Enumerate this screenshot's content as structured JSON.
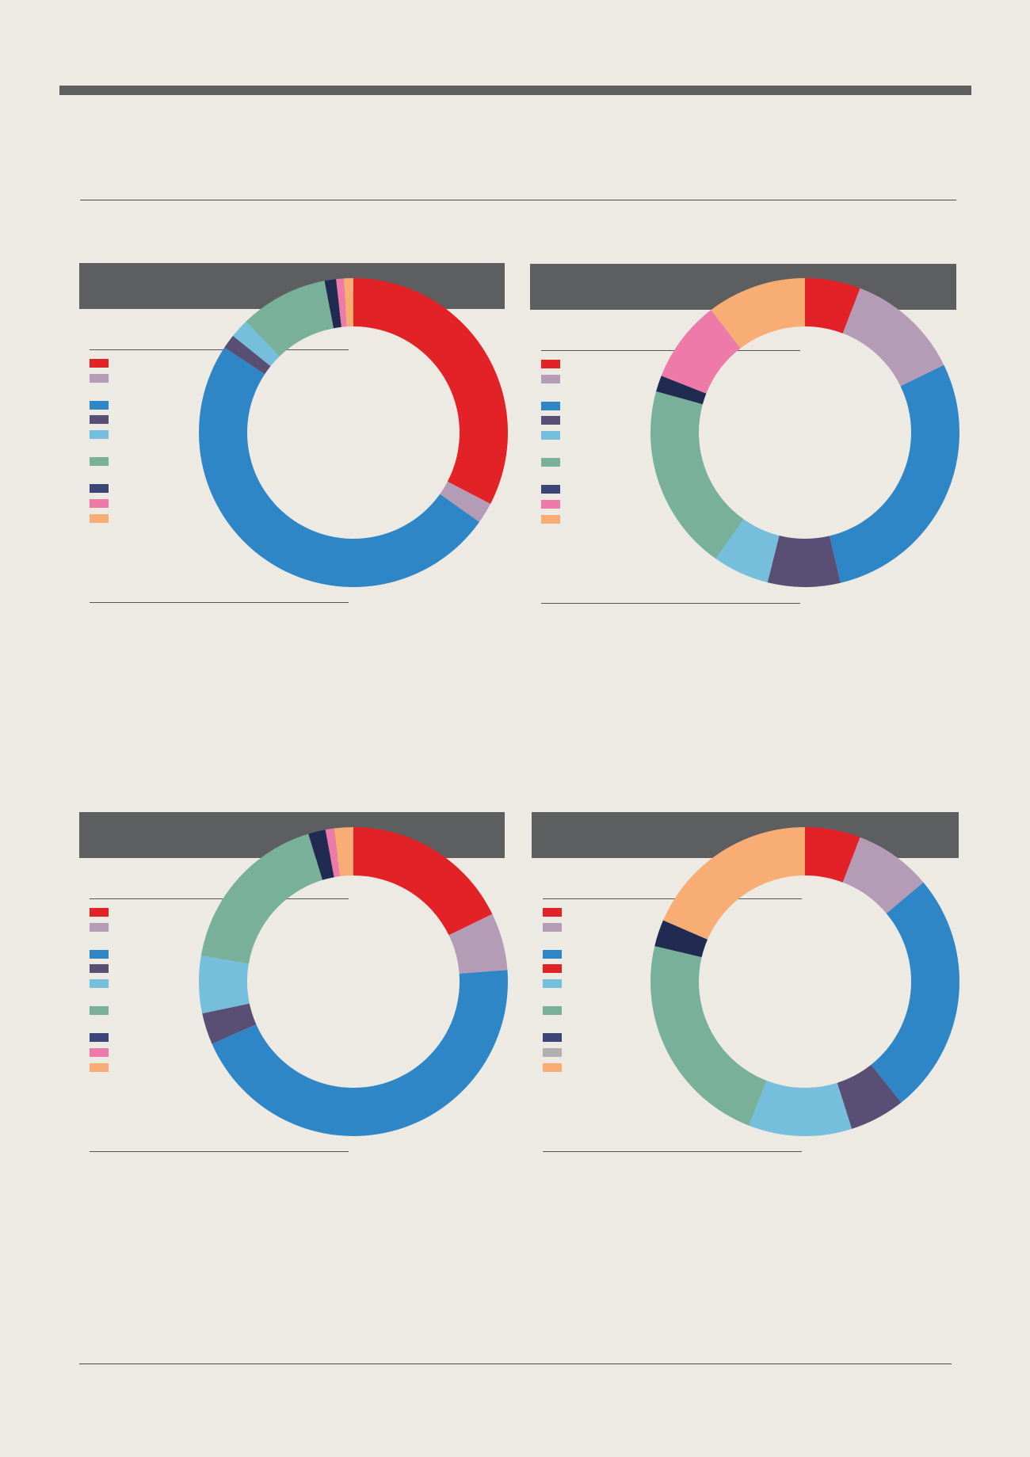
{
  "colors": {
    "background": "#ede9e3",
    "header": "#5d5e60"
  },
  "chart_data": [
    {
      "type": "pie",
      "donut": true,
      "values": [
        32.8,
        2.2,
        49.7,
        1.5,
        2.0,
        9.3,
        1.2,
        0.8,
        1.0
      ],
      "colors": [
        "#e32228",
        "#b59cb6",
        "#2e86c6",
        "#594e74",
        "#75bedc",
        "#78b09a",
        "#212b52",
        "#ee7aa9",
        "#f7ad74"
      ],
      "legend_colors": [
        "#e32228",
        "#b59cb6",
        "#2e86c6",
        "#594e74",
        "#75bedc",
        "#78b09a",
        "#3c4577",
        "#ee7aa9",
        "#f7ad74"
      ]
    },
    {
      "type": "pie",
      "donut": true,
      "values": [
        5.8,
        12.0,
        28.5,
        7.6,
        5.9,
        19.5,
        1.7,
        8.6,
        10.4
      ],
      "colors": [
        "#e32228",
        "#b59cb6",
        "#2e86c6",
        "#594e74",
        "#75bedc",
        "#78b09a",
        "#212b52",
        "#ee7aa9",
        "#f7ad74"
      ],
      "legend_colors": [
        "#e32228",
        "#b59cb6",
        "#2e86c6",
        "#594e74",
        "#75bedc",
        "#78b09a",
        "#3c4577",
        "#ee7aa9",
        "#f7ad74"
      ]
    },
    {
      "type": "pie",
      "donut": true,
      "values": [
        17.8,
        6.0,
        44.6,
        3.3,
        6.0,
        17.6,
        1.8,
        0.9,
        2.0
      ],
      "colors": [
        "#e32228",
        "#b59cb6",
        "#2e86c6",
        "#594e74",
        "#75bedc",
        "#78b09a",
        "#212b52",
        "#ee7aa9",
        "#f7ad74"
      ],
      "legend_colors": [
        "#e32228",
        "#b59cb6",
        "#2e86c6",
        "#594e74",
        "#75bedc",
        "#78b09a",
        "#3c4577",
        "#ee7aa9",
        "#f7ad74"
      ]
    },
    {
      "type": "pie",
      "donut": true,
      "values": [
        5.8,
        8.1,
        25.4,
        5.8,
        10.8,
        22.8,
        2.8,
        18.5
      ],
      "colors": [
        "#e32228",
        "#b59cb6",
        "#2e86c6",
        "#594e74",
        "#75bedc",
        "#78b09a",
        "#212b52",
        "#f7ad74"
      ],
      "legend_colors": [
        "#e32228",
        "#b59cb6",
        "#2e86c6",
        "#e32228",
        "#75bedc",
        "#78b09a",
        "#3c4577",
        "#b0b0b0",
        "#f7ad74"
      ]
    }
  ]
}
